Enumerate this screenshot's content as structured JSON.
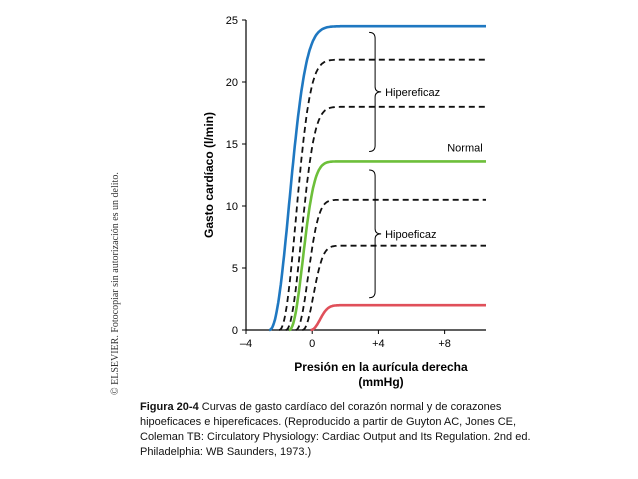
{
  "chart_data": {
    "type": "line",
    "title": "",
    "xlabel_line1": "Presión en la aurícula derecha",
    "xlabel_line2": "(mmHg)",
    "ylabel": "Gasto cardíaco (l/min)",
    "xlim": [
      -4,
      10.5
    ],
    "ylim": [
      0,
      25
    ],
    "xticks": [
      -4,
      0,
      4,
      8
    ],
    "xtick_labels": [
      "–4",
      "0",
      "+4",
      "+8"
    ],
    "yticks": [
      0,
      5,
      10,
      15,
      20,
      25
    ],
    "ytick_labels": [
      "0",
      "5",
      "10",
      "15",
      "20",
      "25"
    ],
    "grid": false,
    "series": [
      {
        "group": "hipereficaz",
        "style": "solid",
        "color": "#1f78c1",
        "x0": -2.6,
        "plateau": 24.5,
        "k": 1.6
      },
      {
        "group": "hipereficaz",
        "style": "dashed",
        "color": "#111111",
        "x0": -2.0,
        "plateau": 21.8,
        "k": 1.35
      },
      {
        "group": "hipereficaz",
        "style": "dashed",
        "color": "#111111",
        "x0": -1.6,
        "plateau": 18.0,
        "k": 1.25
      },
      {
        "group": "normal",
        "style": "solid",
        "color": "#6dbf3a",
        "x0": -1.4,
        "plateau": 13.6,
        "k": 1.1
      },
      {
        "group": "hipoeficaz",
        "style": "dashed",
        "color": "#111111",
        "x0": -1.0,
        "plateau": 10.5,
        "k": 1.0
      },
      {
        "group": "hipoeficaz",
        "style": "dashed",
        "color": "#111111",
        "x0": -0.6,
        "plateau": 6.8,
        "k": 0.9
      },
      {
        "group": "hipoeficaz",
        "style": "solid",
        "color": "#e0505a",
        "x0": -0.1,
        "plateau": 2.0,
        "k": 0.75
      }
    ],
    "annotations": {
      "hipereficaz": "Hipereficaz",
      "normal": "Normal",
      "hipoeficaz": "Hipoeficaz"
    }
  },
  "side_note": "© ELSEVIER. Fotocopiar sin autorización es un delito.",
  "caption": {
    "figure_label": "Figura 20-4",
    "text": "Curvas de gasto cardíaco del corazón normal y de corazones hipoeficaces e hipereficaces. (Reproducido a partir de Guyton AC, Jones CE, Coleman TB: Circulatory Physiology: Cardiac Output and Its Regulation. 2nd ed. Philadelphia: WB Saunders, 1973.)"
  }
}
